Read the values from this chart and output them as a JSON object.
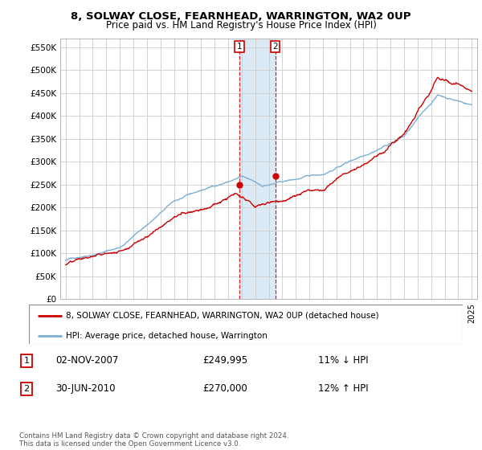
{
  "title": "8, SOLWAY CLOSE, FEARNHEAD, WARRINGTON, WA2 0UP",
  "subtitle": "Price paid vs. HM Land Registry's House Price Index (HPI)",
  "ylabel_ticks": [
    "£0",
    "£50K",
    "£100K",
    "£150K",
    "£200K",
    "£250K",
    "£300K",
    "£350K",
    "£400K",
    "£450K",
    "£500K",
    "£550K"
  ],
  "ytick_values": [
    0,
    50000,
    100000,
    150000,
    200000,
    250000,
    300000,
    350000,
    400000,
    450000,
    500000,
    550000
  ],
  "ylim": [
    0,
    570000
  ],
  "xlim_min": 1994.6,
  "xlim_max": 2025.4,
  "sale1_date": 2007.84,
  "sale1_price": 249995,
  "sale1_label": "1",
  "sale1_text": "02-NOV-2007",
  "sale1_price_text": "£249,995",
  "sale1_pct": "11% ↓ HPI",
  "sale2_date": 2010.49,
  "sale2_price": 270000,
  "sale2_label": "2",
  "sale2_text": "30-JUN-2010",
  "sale2_price_text": "£270,000",
  "sale2_pct": "12% ↑ HPI",
  "legend_line1": "8, SOLWAY CLOSE, FEARNHEAD, WARRINGTON, WA2 0UP (detached house)",
  "legend_line2": "HPI: Average price, detached house, Warrington",
  "footer": "Contains HM Land Registry data © Crown copyright and database right 2024.\nThis data is licensed under the Open Government Licence v3.0.",
  "hpi_color": "#7bafd4",
  "price_color": "#cc0000",
  "shade_color": "#dceaf5",
  "grid_color": "#cccccc",
  "spine_color": "#aaaaaa"
}
